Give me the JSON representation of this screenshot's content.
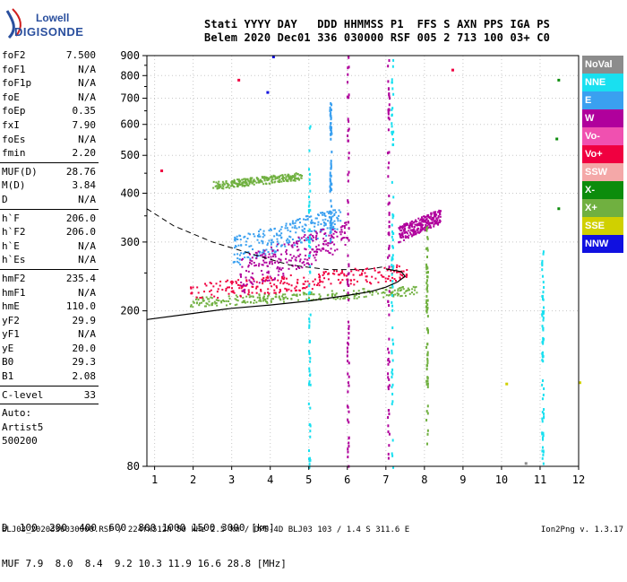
{
  "logo": {
    "line1": "Lowell",
    "line2": "DIGISONDE"
  },
  "header": {
    "line1": "Stati YYYY DAY   DDD HHMMSS P1  FFS S AXN PPS IGA PS",
    "line2": "Belem 2020 Dec01 336 030000 RSF 005 2 713 100 03+ C0"
  },
  "params": {
    "group1": [
      {
        "key": "foF2",
        "value": "7.500"
      },
      {
        "key": "foF1",
        "value": "N/A"
      },
      {
        "key": "foF1p",
        "value": "N/A"
      },
      {
        "key": "foE",
        "value": "N/A"
      },
      {
        "key": "foEp",
        "value": "0.35"
      },
      {
        "key": "fxI",
        "value": "7.90"
      },
      {
        "key": "foEs",
        "value": "N/A"
      },
      {
        "key": "fmin",
        "value": "2.20"
      }
    ],
    "group2": [
      {
        "key": "MUF(D)",
        "value": "28.76"
      },
      {
        "key": "M(D)",
        "value": "3.84"
      },
      {
        "key": "D",
        "value": "N/A"
      }
    ],
    "group3": [
      {
        "key": "h`F",
        "value": "206.0"
      },
      {
        "key": "h`F2",
        "value": "206.0"
      },
      {
        "key": "h`E",
        "value": "N/A"
      },
      {
        "key": "h`Es",
        "value": "N/A"
      }
    ],
    "group4": [
      {
        "key": "hmF2",
        "value": "235.4"
      },
      {
        "key": "hmF1",
        "value": "N/A"
      },
      {
        "key": "hmE",
        "value": "110.0"
      },
      {
        "key": "yF2",
        "value": "29.9"
      },
      {
        "key": "yF1",
        "value": "N/A"
      },
      {
        "key": "yE",
        "value": "20.0"
      },
      {
        "key": "B0",
        "value": "29.3"
      },
      {
        "key": "B1",
        "value": "2.08"
      }
    ],
    "group5": [
      {
        "key": "C-level",
        "value": "33"
      }
    ],
    "auto": [
      "Auto:",
      "Artist5",
      "500200"
    ]
  },
  "legend": [
    {
      "label": "NoVal",
      "color": "#8c8c8c"
    },
    {
      "label": "NNE",
      "color": "#19e0f0"
    },
    {
      "label": "E",
      "color": "#3aa0f0"
    },
    {
      "label": "W",
      "color": "#b0009c"
    },
    {
      "label": "Vo-",
      "color": "#f050b0"
    },
    {
      "label": "Vo+",
      "color": "#f00040"
    },
    {
      "label": "SSW",
      "color": "#f4a8a8"
    },
    {
      "label": "X-",
      "color": "#0c8c0c"
    },
    {
      "label": "X+",
      "color": "#70b040"
    },
    {
      "label": "SSE",
      "color": "#d0d000"
    },
    {
      "label": "NNW",
      "color": "#1010e0"
    }
  ],
  "chart_data": {
    "type": "scatter",
    "title": "",
    "xlabel": "",
    "ylabel": "",
    "xlim": [
      0.8,
      12
    ],
    "ylim": [
      80,
      900
    ],
    "x_ticks": [
      1,
      2,
      3,
      4,
      5,
      6,
      7,
      8,
      9,
      10,
      11,
      12
    ],
    "y_ticks": [
      80,
      200,
      300,
      400,
      500,
      600,
      700,
      800,
      900
    ],
    "grid": true,
    "y_scale": "log",
    "bands": [
      {
        "name": "lower trace X+",
        "color": "#70b040",
        "f": [
          1.9,
          7.8
        ],
        "h": [
          205,
          230
        ]
      },
      {
        "name": "lower trace Vo+",
        "color": "#f00040",
        "f": [
          1.9,
          7.6
        ],
        "h": [
          212,
          260
        ]
      },
      {
        "name": "E spread",
        "color": "#3aa0f0",
        "f": [
          3.0,
          5.8
        ],
        "h": [
          260,
          360
        ]
      },
      {
        "name": "upper spread",
        "color": "#b0009c",
        "f": [
          3.2,
          6.0
        ],
        "h": [
          220,
          330
        ]
      },
      {
        "name": "sporadic cloud",
        "color": "#70b040",
        "f": [
          2.5,
          4.8
        ],
        "h": [
          410,
          450
        ]
      },
      {
        "name": "cusp",
        "color": "#b0009c",
        "f": [
          7.3,
          8.4
        ],
        "h": [
          300,
          360
        ]
      }
    ],
    "vertical_lines": [
      {
        "f": 6.0,
        "h": [
          80,
          900
        ],
        "color": "#b0009c"
      },
      {
        "f": 7.05,
        "h": [
          80,
          900
        ],
        "color": "#b0009c"
      },
      {
        "f": 7.15,
        "h": [
          80,
          900
        ],
        "color": "#19e0f0"
      },
      {
        "f": 8.05,
        "h": [
          90,
          330
        ],
        "color": "#70b040"
      },
      {
        "f": 11.05,
        "h": [
          80,
          290
        ],
        "color": "#19e0f0"
      },
      {
        "f": 5.0,
        "h": [
          80,
          600
        ],
        "color": "#19e0f0"
      },
      {
        "f": 5.55,
        "h": [
          300,
          700
        ],
        "color": "#3aa0f0"
      }
    ],
    "profile_solid": {
      "f": [
        0.8,
        2.0,
        3.0,
        4.0,
        5.0,
        6.0,
        6.6,
        7.0,
        7.3,
        7.5,
        7.4,
        7.0
      ],
      "h": [
        190,
        197,
        203,
        207,
        212,
        219,
        224,
        230,
        237,
        245,
        252,
        256
      ]
    },
    "profile_dashed": {
      "f": [
        0.8,
        1.5,
        2.5,
        3.5,
        4.5,
        5.5,
        6.5,
        7.0
      ],
      "h": [
        365,
        330,
        300,
        280,
        262,
        255,
        255,
        260
      ]
    },
    "markers": [
      {
        "f": 11.45,
        "h": 785,
        "color": "#0c8c0c"
      },
      {
        "f": 8.7,
        "h": 833,
        "color": "#f00040"
      },
      {
        "f": 4.05,
        "h": 900,
        "color": "#1010e0"
      },
      {
        "f": 3.9,
        "h": 730,
        "color": "#1010e0"
      },
      {
        "f": 3.15,
        "h": 785,
        "color": "#f00040"
      },
      {
        "f": 11.45,
        "h": 368,
        "color": "#0c8c0c"
      },
      {
        "f": 11.4,
        "h": 555,
        "color": "#0c8c0c"
      },
      {
        "f": 12.0,
        "h": 132,
        "color": "#d0d000"
      },
      {
        "f": 10.1,
        "h": 131,
        "color": "#d0d000"
      },
      {
        "f": 10.6,
        "h": 82,
        "color": "#8c8c8c"
      },
      {
        "f": 1.15,
        "h": 460,
        "color": "#f00040"
      }
    ]
  },
  "bottom": {
    "d_label": "D",
    "d_values": "  100  200  400  600  800 1000 1500 3000 [km]",
    "muf_label": "MUF",
    "muf_values": " 7.9  8.0  8.4  9.2 10.3 11.9 16.6 28.8 [MHz]"
  },
  "footer": "BLJ03_2020336030000.RSF / 224fx512h 50 kHz 2.5 km / DPS-4D BLJ03 103 / 1.4 S 311.6 E",
  "version": "Ion2Png v. 1.3.17"
}
